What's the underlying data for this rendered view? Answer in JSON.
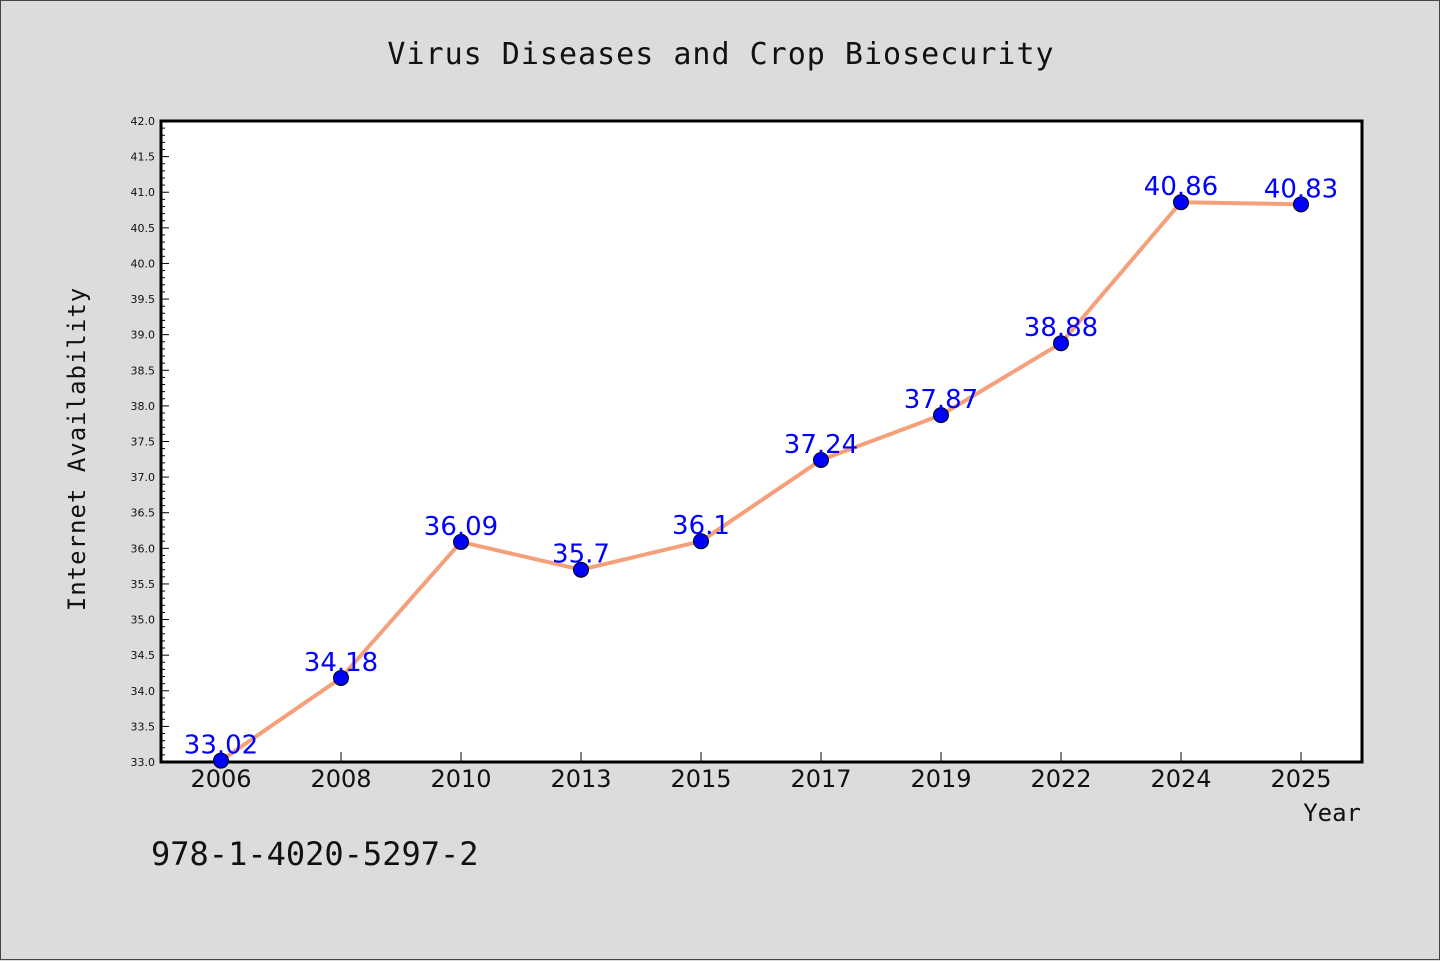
{
  "chart_data": {
    "type": "line",
    "title": "Virus Diseases and Crop Biosecurity",
    "xlabel": "Year",
    "ylabel": "Internet Availability",
    "categories": [
      "2006",
      "2008",
      "2010",
      "2013",
      "2015",
      "2017",
      "2019",
      "2022",
      "2024",
      "2025"
    ],
    "series": [
      {
        "values": [
          33.02,
          34.18,
          36.09,
          35.7,
          36.1,
          37.24,
          37.87,
          38.88,
          40.86,
          40.83
        ]
      }
    ],
    "data_labels": [
      "33.02",
      "34.18",
      "36.09",
      "35.7",
      "36.1",
      "37.24",
      "37.87",
      "38.88",
      "40.86",
      "40.83"
    ],
    "ylim": [
      33.0,
      42.0
    ],
    "yticks": [
      "33.0",
      "33.5",
      "34.0",
      "34.5",
      "35.0",
      "35.5",
      "36.0",
      "36.5",
      "37.0",
      "37.5",
      "38.0",
      "38.5",
      "39.0",
      "39.5",
      "40.0",
      "40.5",
      "41.0",
      "41.5",
      "42.0"
    ],
    "grid": false,
    "legend": "none",
    "colors": {
      "line": "#f4a07a",
      "marker": "#0000ff",
      "labels": "#0000ff",
      "background": "#dcdcdc",
      "plot_background": "#ffffff"
    }
  },
  "footnote": "978-1-4020-5297-2"
}
